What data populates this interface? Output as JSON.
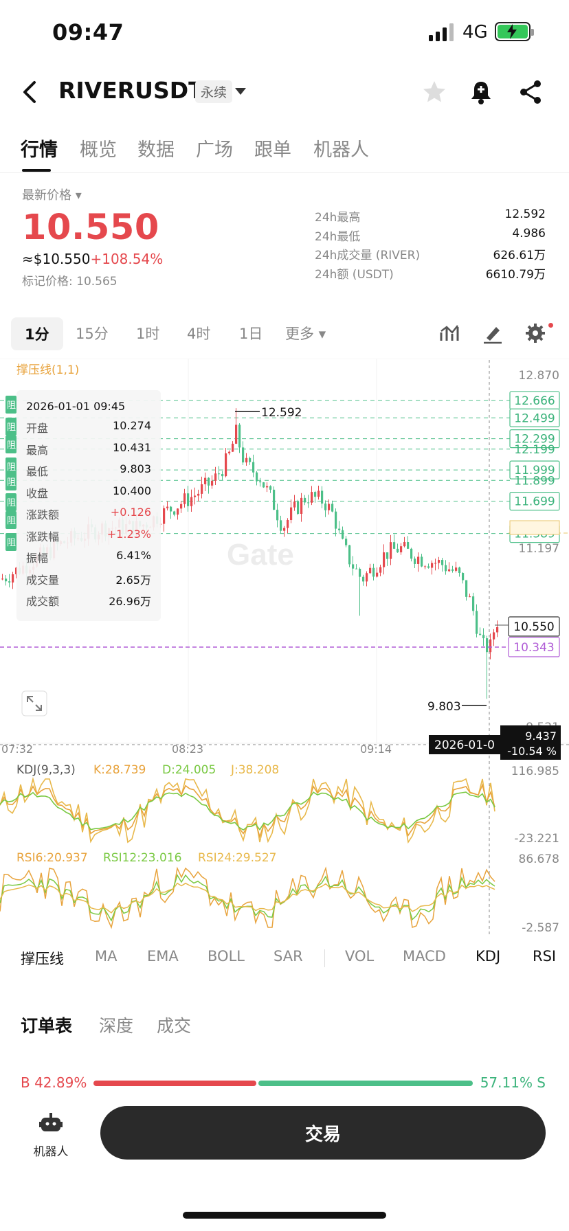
{
  "status_bar": {
    "time": "09:47",
    "network": "4G"
  },
  "header": {
    "symbol": "RIVERUSDT",
    "contract_type": "永续"
  },
  "tabs": [
    {
      "label": "行情",
      "active": true
    },
    {
      "label": "概览"
    },
    {
      "label": "数据"
    },
    {
      "label": "广场"
    },
    {
      "label": "跟单"
    },
    {
      "label": "机器人"
    }
  ],
  "price": {
    "label": "最新价格",
    "last": "10.550",
    "usd": "≈$10.550",
    "change": "+108.54%",
    "mark_price": "标记价格: 10.565"
  },
  "stats": [
    {
      "label": "24h最高",
      "value": "12.592"
    },
    {
      "label": "24h最低",
      "value": "4.986"
    },
    {
      "label": "24h成交量 (RIVER)",
      "value": "626.61万"
    },
    {
      "label": "24h额 (USDT)",
      "value": "6610.79万"
    }
  ],
  "timeframes": [
    "1分",
    "15分",
    "1时",
    "4时",
    "1日",
    "更多"
  ],
  "chart": {
    "overlay_label": "撑压线(1,1)",
    "y_top_label": "12.870",
    "y_mid_label": "11.197",
    "y_low_label": "9.521",
    "level_labels": [
      "12.666",
      "12.499",
      "12.299",
      "12.199",
      "11.999",
      "11.899",
      "11.699",
      "11.389"
    ],
    "current_price": "10.550",
    "line_price": "10.343",
    "high_marker": "12.592",
    "low_marker": "9.803",
    "time_labels": [
      "07:32",
      "08:23",
      "09:14"
    ],
    "crosshair_time": "2026-01-0",
    "crosshair_price": "9.437",
    "crosshair_change": "-10.54 %",
    "side_tag": "阻"
  },
  "ohlc": {
    "time": "2026-01-01 09:45",
    "rows": [
      {
        "k": "开盘",
        "v": "10.274"
      },
      {
        "k": "最高",
        "v": "10.431"
      },
      {
        "k": "最低",
        "v": "9.803"
      },
      {
        "k": "收盘",
        "v": "10.400"
      },
      {
        "k": "涨跌额",
        "v": "+0.126",
        "up": true
      },
      {
        "k": "涨跌幅",
        "v": "+1.23%",
        "up": true
      },
      {
        "k": "振幅",
        "v": "6.41%"
      },
      {
        "k": "成交量",
        "v": "2.65万"
      },
      {
        "k": "成交额",
        "v": "26.96万"
      }
    ]
  },
  "kdj": {
    "name": "KDJ(9,3,3)",
    "k": "K:28.739",
    "d": "D:24.005",
    "j": "J:38.208",
    "max": "116.985",
    "min": "-23.221"
  },
  "rsi": {
    "r6": "RSI6:20.937",
    "r12": "RSI12:23.016",
    "r24": "RSI24:29.527",
    "max": "86.678",
    "min": "-2.587"
  },
  "indicators": [
    "撑压线",
    "MA",
    "EMA",
    "BOLL",
    "SAR",
    "VOL",
    "MACD",
    "KDJ",
    "RSI"
  ],
  "order_tabs": [
    "订单表",
    "深度",
    "成交"
  ],
  "ratio": {
    "buy": "B 42.89%",
    "sell": "57.11% S",
    "buy_fraction": 0.4289
  },
  "bottom": {
    "robot_label": "机器人",
    "trade_label": "交易"
  },
  "colors": {
    "up": "#e5484d",
    "down": "#4cbf88",
    "kd_orange": "#e8a33c",
    "rsi_green": "#7ac943",
    "purple": "#b05cd6"
  }
}
